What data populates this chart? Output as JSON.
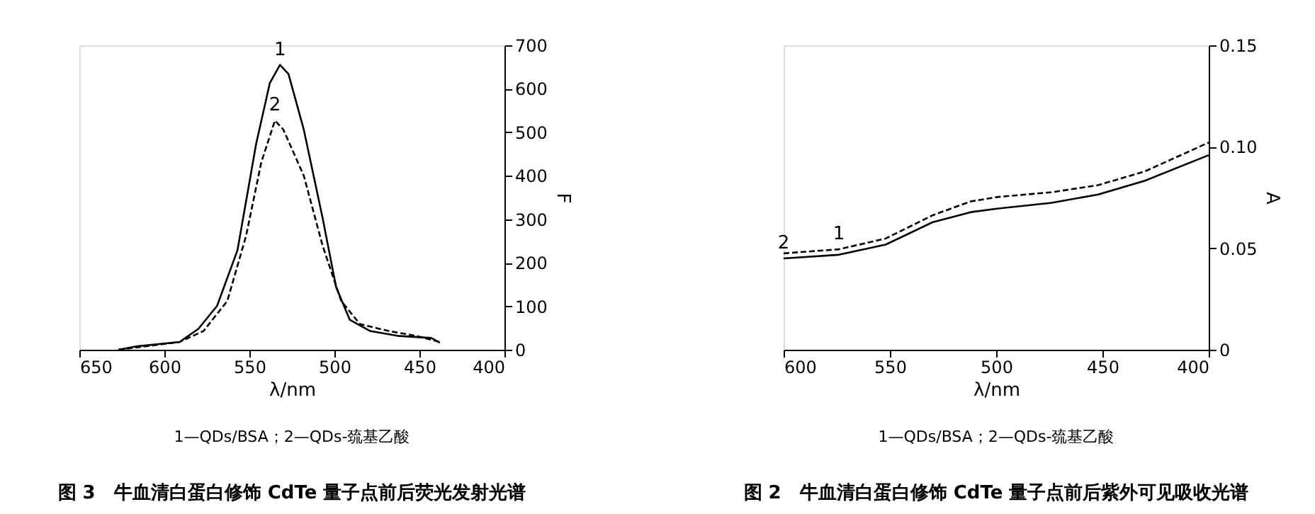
{
  "chart_data": [
    {
      "type": "line",
      "title": "图 3　牛血清白蛋白修饰 CdTe 量子点前后荧光发射光谱",
      "xlabel": "λ/nm",
      "ylabel": "F",
      "xlim": [
        650,
        400
      ],
      "xticks": [
        650,
        600,
        550,
        500,
        450,
        400
      ],
      "ylim": [
        0,
        700
      ],
      "yticks": [
        0,
        100,
        200,
        300,
        400,
        500,
        600,
        700
      ],
      "grid": false,
      "series": [
        {
          "color": "#000000",
          "line_style": "solid",
          "x": [
            627,
            616,
            591,
            580,
            569,
            557,
            546,
            538,
            532,
            527,
            518,
            507,
            499,
            491,
            479,
            463,
            443,
            438
          ],
          "values": [
            0,
            8,
            18,
            48,
            101,
            229,
            474,
            613,
            655,
            634,
            506,
            304,
            144,
            69,
            43,
            32,
            27,
            16
          ]
        },
        {
          "color": "#000000",
          "line_style": "dashed",
          "x": [
            627,
            591,
            577,
            563,
            552,
            543,
            535,
            530,
            518,
            507,
            496,
            485,
            468,
            452,
            438
          ],
          "values": [
            0,
            18,
            43,
            112,
            261,
            431,
            527,
            506,
            400,
            240,
            112,
            59,
            43,
            32,
            18
          ]
        }
      ],
      "annotations": [
        {
          "text": "1",
          "x": 532,
          "y": 655
        },
        {
          "text": "2",
          "x": 535,
          "y": 527
        },
        "1—QDs/BSA；2—QDs-巯基乙酸"
      ]
    },
    {
      "type": "line",
      "title": "图 2　牛血清白蛋白修饰 CdTe 量子点前后紫外可见吸收光谱",
      "xlabel": "λ/nm",
      "ylabel": "A",
      "xlim": [
        600,
        400
      ],
      "xticks": [
        600,
        550,
        500,
        450,
        400
      ],
      "ylim": [
        0,
        0.15
      ],
      "yticks": [
        0,
        0.05,
        {
          "value": 0.1,
          "label": "0.10"
        },
        0.15
      ],
      "grid": false,
      "series": [
        {
          "color": "#000000",
          "line_style": "dashed",
          "x": [
            600,
            574,
            552,
            530,
            512,
            499,
            474,
            452,
            430,
            400
          ],
          "values": [
            0.0475,
            0.0495,
            0.0548,
            0.0662,
            0.0731,
            0.0753,
            0.0776,
            0.0811,
            0.0879,
            0.1021
          ]
        },
        {
          "color": "#000000",
          "line_style": "solid",
          "x": [
            600,
            574,
            552,
            530,
            512,
            499,
            474,
            452,
            430,
            400
          ],
          "values": [
            0.045,
            0.0468,
            0.0518,
            0.0628,
            0.0678,
            0.0696,
            0.0724,
            0.0765,
            0.0833,
            0.0959
          ]
        }
      ],
      "annotations": [
        {
          "text": "1",
          "x": 574,
          "y": 0.0495
        },
        {
          "text": "2",
          "x": 600,
          "y": 0.045
        },
        "1—QDs/BSA；2—QDs-巯基乙酸"
      ]
    }
  ]
}
